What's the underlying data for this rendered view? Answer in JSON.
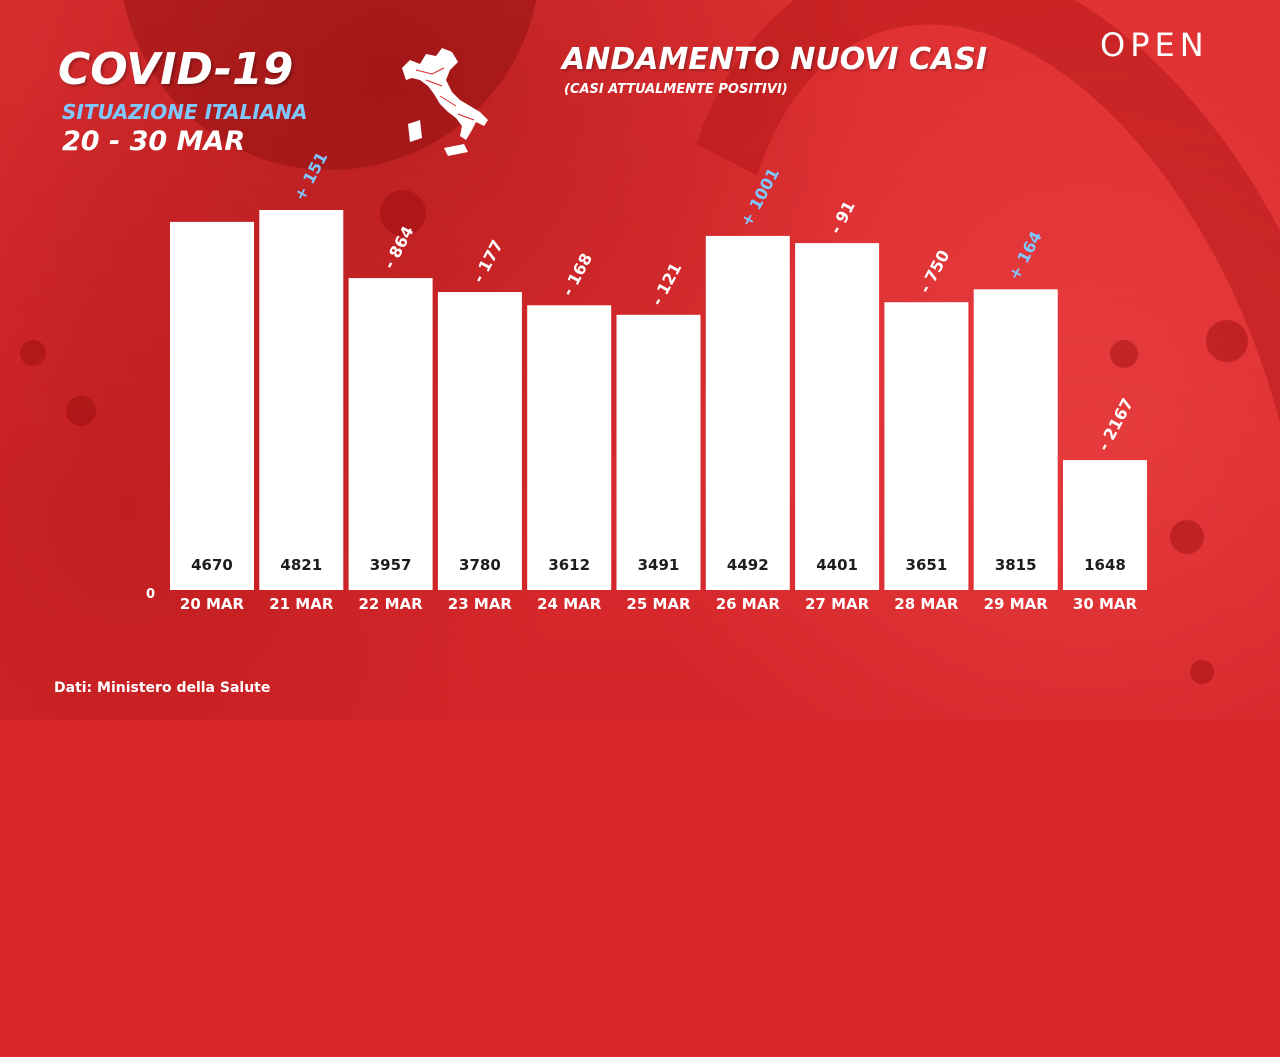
{
  "header": {
    "title": "COVID-19",
    "region": "SITUAZIONE ITALIANA",
    "date_range": "20 - 30 MAR",
    "logo": "OPEN",
    "map_icon": "italy-map-icon"
  },
  "colors": {
    "background": "#d8282a",
    "bar": "#ffffff",
    "increase": "#7fc8ff",
    "decrease": "#ffffff",
    "value_text": "#1d1d1d"
  },
  "footer": {
    "source": "Dati: Ministero della Salute"
  },
  "chart_data": {
    "type": "bar",
    "title": "ANDAMENTO NUOVI CASI",
    "subtitle": "(CASI ATTUALMENTE POSITIVI)",
    "categories": [
      "20 MAR",
      "21 MAR",
      "22 MAR",
      "23 MAR",
      "24 MAR",
      "25 MAR",
      "26 MAR",
      "27 MAR",
      "28 MAR",
      "29 MAR",
      "30 MAR"
    ],
    "values": [
      4670,
      4821,
      3957,
      3780,
      3612,
      3491,
      4492,
      4401,
      3651,
      3815,
      1648
    ],
    "changes": [
      "",
      "+ 151",
      "- 864",
      "- 177",
      "- 168",
      "- 121",
      "+ 1001",
      "- 91",
      "- 750",
      "+ 164",
      "- 2167"
    ],
    "change_direction": [
      "",
      "up",
      "down",
      "down",
      "down",
      "down",
      "up",
      "down",
      "down",
      "up",
      "down"
    ],
    "y_zero_label": "0",
    "ylim": [
      0,
      5000
    ],
    "grid": false,
    "legend": "none"
  }
}
